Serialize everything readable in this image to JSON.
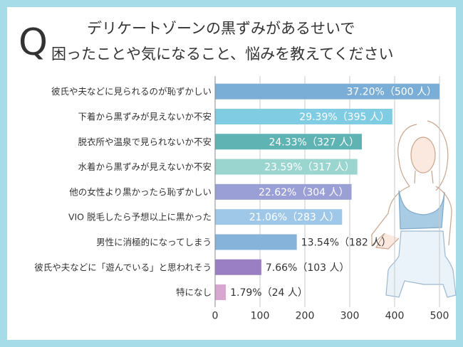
{
  "title": {
    "q": "Q",
    "line1": "デリケートゾーンの黒ずみがあるせいで",
    "line2": "困ったことや気になること、悩みを教えてください"
  },
  "chart_data": {
    "type": "bar",
    "orientation": "horizontal",
    "categories": [
      "彼氏や夫などに見られるのが恥ずかしい",
      "下着から黒ずみが見えないか不安",
      "脱衣所や温泉で見られないか不安",
      "水着から黒ずみが見えないか不安",
      "他の女性より黒かったら恥ずかしい",
      "VIO 脱毛したら予想以上に黒かった",
      "男性に消極的になってしまう",
      "彼氏や夫などに「遊んでいる」と思われそう",
      "特になし"
    ],
    "values": [
      500,
      395,
      327,
      317,
      304,
      283,
      182,
      103,
      24
    ],
    "value_labels": [
      "37.20%（500 人）",
      "29.39%（395 人）",
      "24.33%（327 人）",
      "23.59%（317 人）",
      "22.62%（304 人）",
      "21.06%（283 人）",
      "13.54%（182 人）",
      "7.66%（103 人）",
      "1.79%（24 人）"
    ],
    "colors": [
      "#7aaed6",
      "#7fcce3",
      "#5fb3b3",
      "#9ad6cf",
      "#9a9fd6",
      "#9fc8e8",
      "#86b3d9",
      "#9a7fc4",
      "#d9a6cf"
    ],
    "xlim": [
      0,
      500
    ],
    "xticks": [
      0,
      100,
      200,
      300,
      400,
      500
    ],
    "grid": true
  }
}
